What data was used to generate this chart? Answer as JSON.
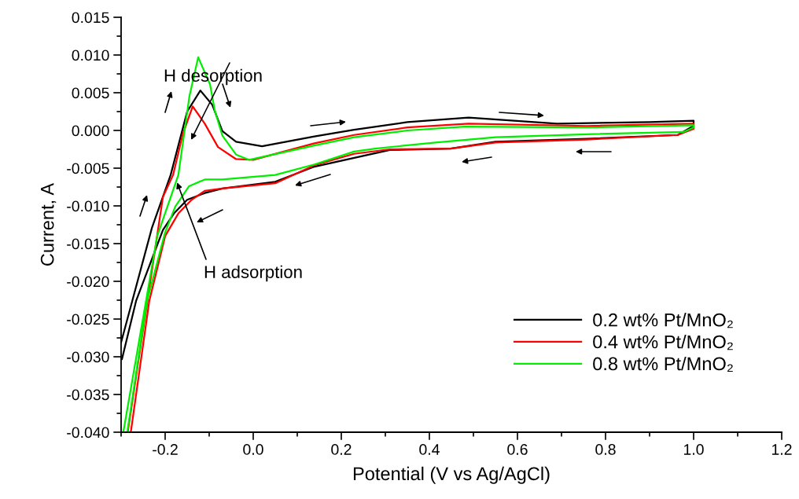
{
  "chart_data": {
    "type": "line",
    "xlabel": "Potential (V vs Ag/AgCl)",
    "ylabel": "Current, A",
    "xlim": [
      -0.3,
      1.2
    ],
    "xticks": [
      -0.2,
      {
        "value": 0.0,
        "label": "0.0"
      },
      0.2,
      0.4,
      0.6,
      0.8,
      {
        "value": 1.0,
        "label": "1.0"
      },
      1.2
    ],
    "ylim": [
      -0.04,
      0.015
    ],
    "yticks": [
      {
        "value": -0.04,
        "label": "-0.040"
      },
      {
        "value": -0.035,
        "label": "-0.035"
      },
      {
        "value": -0.03,
        "label": "-0.030"
      },
      {
        "value": -0.025,
        "label": "-0.025"
      },
      {
        "value": -0.02,
        "label": "-0.020"
      },
      {
        "value": -0.015,
        "label": "-0.015"
      },
      {
        "value": -0.01,
        "label": "-0.010"
      },
      {
        "value": -0.005,
        "label": "-0.005"
      },
      {
        "value": 0.0,
        "label": "0.000"
      },
      {
        "value": 0.005,
        "label": "0.005"
      },
      {
        "value": 0.01,
        "label": "0.010"
      },
      {
        "value": 0.015,
        "label": "0.015"
      }
    ],
    "grid": false,
    "legend": "bottom right",
    "marker": "none",
    "line_style": "solid",
    "annotations": [
      "H desorption",
      {
        "text": "H adsorption",
        "x": -0.173,
        "y": -0.0069
      }
    ],
    "series": [
      {
        "name": "0.2 wt% Pt/MnO₂",
        "color": "#000000",
        "x": [
          -0.3,
          -0.23,
          -0.1875,
          -0.15,
          -0.12,
          -0.093,
          -0.07,
          -0.039,
          0.02,
          0.139,
          0.229,
          0.35,
          0.489,
          0.69,
          0.9,
          1.0,
          1.0,
          0.964,
          0.757,
          0.55,
          0.448,
          0.31,
          0.139,
          0.05,
          -0.07,
          -0.11,
          -0.15,
          -0.18,
          -0.205,
          -0.266,
          -0.298
        ],
        "values": [
          -0.0281,
          -0.0129,
          -0.0059,
          0.0025,
          0.0053,
          0.0034,
          -0.0001,
          -0.0015,
          -0.0021,
          -0.0008,
          0.0001,
          0.0011,
          0.0017,
          0.0009,
          0.0011,
          0.0013,
          0.0006,
          -0.0006,
          -0.0011,
          -0.0015,
          -0.0024,
          -0.0026,
          -0.0048,
          -0.0068,
          -0.0077,
          -0.0083,
          -0.0092,
          -0.011,
          -0.0132,
          -0.0226,
          -0.0303
        ]
      },
      {
        "name": "0.4 wt% Pt/MnO₂",
        "color": "#ff0000",
        "x": [
          -0.285,
          -0.205,
          -0.182,
          -0.16,
          -0.1375,
          -0.11,
          -0.08,
          -0.039,
          0.0,
          0.139,
          0.229,
          0.35,
          0.489,
          0.757,
          1.0,
          1.0,
          0.964,
          0.757,
          0.55,
          0.448,
          0.31,
          0.229,
          0.139,
          0.05,
          -0.07,
          -0.11,
          -0.14,
          -0.17,
          -0.2,
          -0.236,
          -0.278
        ],
        "values": [
          -0.04,
          -0.0088,
          -0.0059,
          -0.0005,
          0.0032,
          0.0009,
          -0.0022,
          -0.0038,
          -0.0039,
          -0.0017,
          -0.0006,
          0.0004,
          0.0009,
          0.0006,
          0.0009,
          0.0002,
          -0.0006,
          -0.0012,
          -0.0016,
          -0.0024,
          -0.0025,
          -0.0031,
          -0.0046,
          -0.007,
          -0.0077,
          -0.008,
          -0.0092,
          -0.011,
          -0.014,
          -0.0226,
          -0.04
        ]
      },
      {
        "name": "0.8 wt% Pt/MnO₂",
        "color": "#00ee00",
        "x": [
          -0.295,
          -0.218,
          -0.17,
          -0.145,
          -0.125,
          -0.098,
          -0.0875,
          -0.07,
          -0.039,
          -0.009,
          0.139,
          0.229,
          0.35,
          0.48,
          0.757,
          1.0,
          1.0,
          0.977,
          0.757,
          0.55,
          0.414,
          0.277,
          0.229,
          0.139,
          0.05,
          -0.07,
          -0.11,
          -0.146,
          -0.177,
          -0.2,
          -0.241,
          -0.286
        ],
        "values": [
          -0.04,
          -0.014,
          -0.0059,
          0.0045,
          0.0097,
          0.0061,
          0.0027,
          -0.0007,
          -0.0032,
          -0.0039,
          -0.002,
          -0.0009,
          0.0,
          0.0005,
          0.0004,
          0.0007,
          0.0004,
          -0.0002,
          -0.0005,
          -0.0009,
          -0.0016,
          -0.0024,
          -0.0028,
          -0.0045,
          -0.0059,
          -0.0065,
          -0.0065,
          -0.0074,
          -0.0101,
          -0.0135,
          -0.0226,
          -0.04
        ]
      }
    ]
  }
}
